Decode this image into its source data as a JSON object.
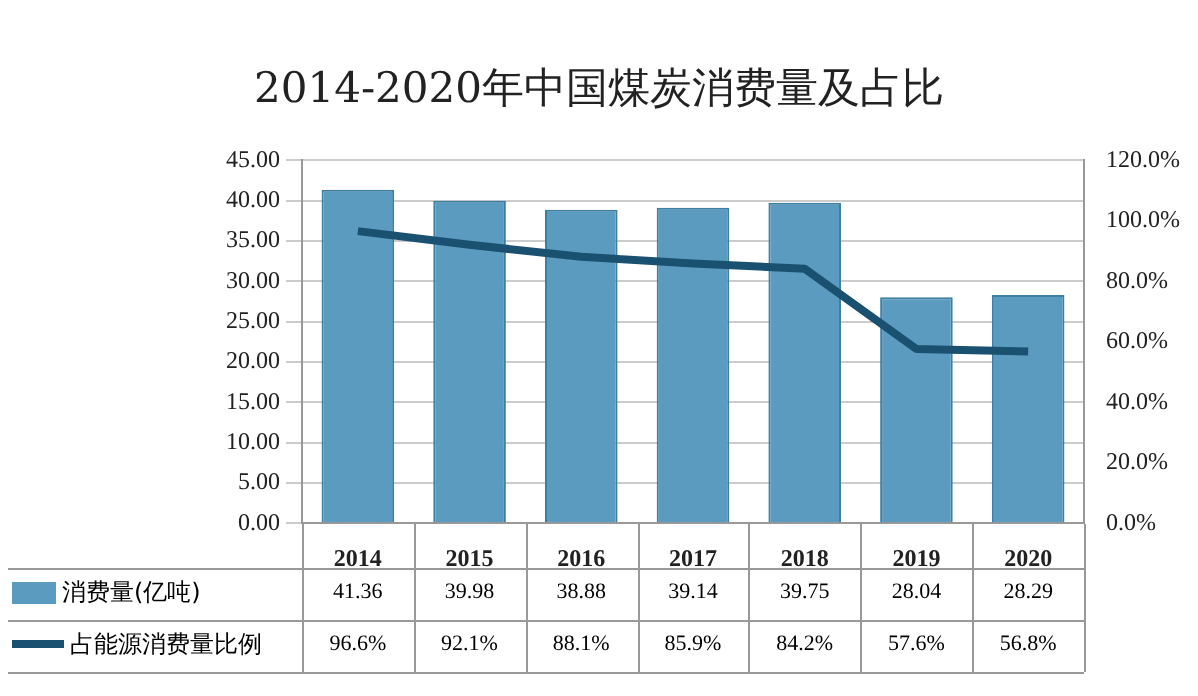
{
  "chart_data": {
    "type": "bar",
    "title": "2014-2020年中国煤炭消费量及占比",
    "categories": [
      "2014",
      "2015",
      "2016",
      "2017",
      "2018",
      "2019",
      "2020"
    ],
    "series": [
      {
        "name": "消费量(亿吨)",
        "color": "#5b9bc0",
        "values": [
          41.36,
          39.98,
          38.88,
          39.14,
          39.75,
          28.04,
          28.29
        ],
        "value_labels": [
          "41.36",
          "39.98",
          "38.88",
          "39.14",
          "39.75",
          "28.04",
          "28.29"
        ]
      },
      {
        "name": "占能源消费量比例",
        "type": "line",
        "axis": "y2",
        "color": "#1b5170",
        "values": [
          96.6,
          92.1,
          88.1,
          85.9,
          84.2,
          57.6,
          56.8
        ],
        "value_labels": [
          "96.6%",
          "92.1%",
          "88.1%",
          "85.9%",
          "84.2%",
          "57.6%",
          "56.8%"
        ]
      }
    ],
    "ylim": [
      0,
      45
    ],
    "yticks": [
      {
        "value": 0,
        "label": "0.00"
      },
      {
        "value": 5,
        "label": "5.00"
      },
      {
        "value": 10,
        "label": "10.00"
      },
      {
        "value": 15,
        "label": "15.00"
      },
      {
        "value": 20,
        "label": "20.00"
      },
      {
        "value": 25,
        "label": "25.00"
      },
      {
        "value": 30,
        "label": "30.00"
      },
      {
        "value": 35,
        "label": "35.00"
      },
      {
        "value": 40,
        "label": "40.00"
      },
      {
        "value": 45,
        "label": "45.00"
      }
    ],
    "y2lim": [
      0,
      120
    ],
    "y2ticks": [
      {
        "value": 0,
        "label": "0.0%"
      },
      {
        "value": 20,
        "label": "20.0%"
      },
      {
        "value": 40,
        "label": "40.0%"
      },
      {
        "value": 60,
        "label": "60.0%"
      },
      {
        "value": 80,
        "label": "80.0%"
      },
      {
        "value": 100,
        "label": "100.0%"
      },
      {
        "value": 120,
        "label": "120.0%"
      }
    ],
    "grid": "y",
    "legend": "bottom",
    "marker": "none",
    "line_style": "solid"
  }
}
